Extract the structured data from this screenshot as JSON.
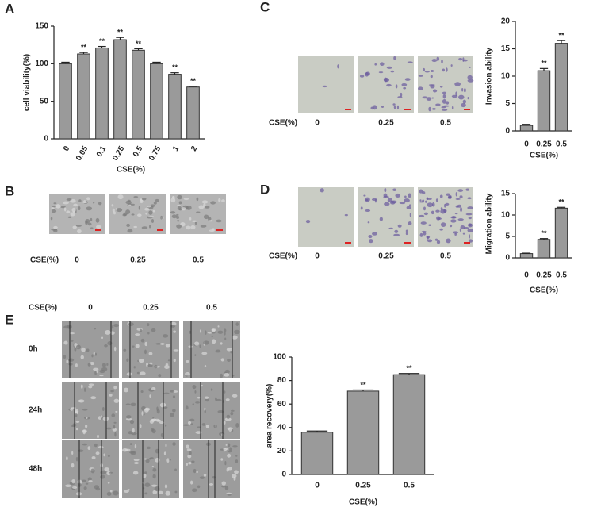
{
  "chart_data": [
    {
      "type": "bar",
      "categories": [
        "0",
        "0.05",
        "0.1",
        "0.25",
        "0.5",
        "0.75",
        "1",
        "2"
      ],
      "values": [
        100,
        113,
        121,
        132,
        118,
        100,
        86,
        69
      ],
      "errors": [
        2,
        2,
        2,
        3,
        2,
        2,
        2,
        1
      ],
      "significance": [
        null,
        "**",
        "**",
        "**",
        "**",
        null,
        "**",
        "**"
      ],
      "ylabel": "cell viability(%)",
      "xlabel": "CSE(%)",
      "ylim": [
        0,
        150
      ],
      "yticks": [
        0,
        50,
        100,
        150
      ],
      "color": "#9a9a9a"
    },
    {
      "type": "bar",
      "categories": [
        "0",
        "0.25",
        "0.5"
      ],
      "values": [
        1,
        11,
        16
      ],
      "errors": [
        0.2,
        0.4,
        0.5
      ],
      "significance": [
        null,
        "**",
        "**"
      ],
      "ylabel": "Invasion ability",
      "xlabel": "CSE(%)",
      "ylim": [
        0,
        20
      ],
      "yticks": [
        0,
        5,
        10,
        15,
        20
      ],
      "color": "#9a9a9a"
    },
    {
      "type": "bar",
      "categories": [
        "0",
        "0.25",
        "0.5"
      ],
      "values": [
        1,
        4.3,
        11.6
      ],
      "errors": [
        0.1,
        0.2,
        0.2
      ],
      "significance": [
        null,
        "**",
        "**"
      ],
      "ylabel": "Migration ability",
      "xlabel": "CSE(%)",
      "ylim": [
        0,
        15
      ],
      "yticks": [
        0,
        5,
        10,
        15
      ],
      "color": "#9a9a9a"
    },
    {
      "type": "bar",
      "categories": [
        "0",
        "0.25",
        "0.5"
      ],
      "values": [
        36,
        71,
        85
      ],
      "errors": [
        1,
        1,
        1
      ],
      "significance": [
        null,
        "**",
        "**"
      ],
      "ylabel": "area recovery(%)",
      "xlabel": "CSE(%)",
      "ylim": [
        0,
        100
      ],
      "yticks": [
        0,
        20,
        40,
        60,
        80,
        100
      ],
      "color": "#9a9a9a"
    }
  ],
  "panel_labels": [
    "A",
    "B",
    "C",
    "D",
    "E"
  ],
  "images": {
    "B": {
      "row_label": "CSE(%)",
      "columns": [
        "0",
        "0.25",
        "0.5"
      ]
    },
    "C": {
      "row_label": "CSE(%)",
      "columns": [
        "0",
        "0.25",
        "0.5"
      ]
    },
    "D": {
      "row_label": "CSE(%)",
      "columns": [
        "0",
        "0.25",
        "0.5"
      ]
    },
    "E": {
      "header": "CSE(%)",
      "columns": [
        "0",
        "0.25",
        "0.5"
      ],
      "rows": [
        "0h",
        "24h",
        "48h"
      ]
    }
  }
}
